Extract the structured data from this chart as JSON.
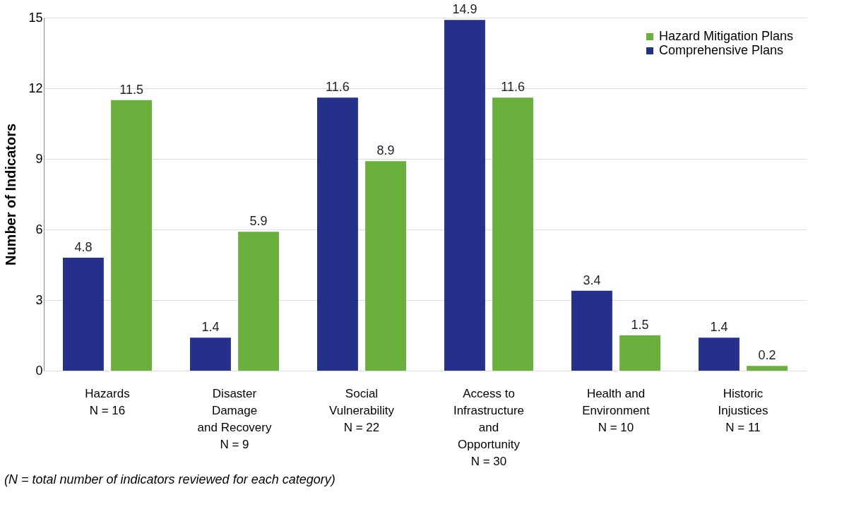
{
  "chart_data": {
    "type": "bar",
    "ylabel": "Number of Indicators",
    "categories": [
      "Hazards\nN = 16",
      "Disaster\nDamage\nand Recovery\nN = 9",
      "Social\nVulnerability\nN = 22",
      "Access to\nInfrastructure\nand\nOpportunity\nN = 30",
      "Health and\nEnvironment\nN = 10",
      "Historic\nInjustices\nN = 11"
    ],
    "series": [
      {
        "name": "Comprehensive Plans",
        "color": "#25308a",
        "values": [
          4.8,
          1.4,
          11.6,
          14.9,
          3.4,
          1.4
        ]
      },
      {
        "name": "Hazard Mitigation Plans",
        "color": "#6ab03c",
        "values": [
          11.5,
          5.9,
          8.9,
          11.6,
          1.5,
          0.2
        ]
      }
    ],
    "ylim": [
      0,
      15
    ],
    "yticks": [
      0,
      3,
      6,
      9,
      12,
      15
    ],
    "grid": "y",
    "legend": "top right",
    "data_labels": true,
    "annotations": [
      "(N = total number of indicators reviewed for each category)"
    ]
  }
}
